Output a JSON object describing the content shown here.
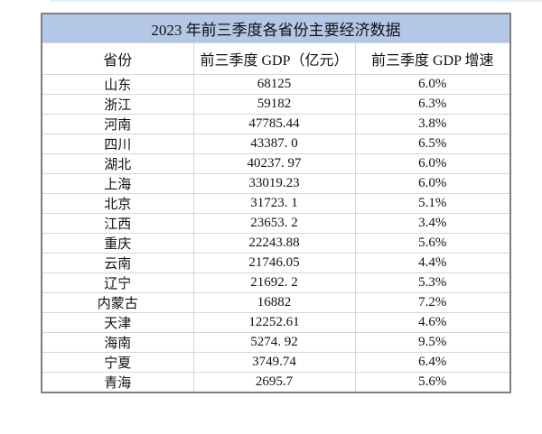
{
  "chart_data": {
    "type": "table",
    "title": "2023 年前三季度各省份主要经济数据",
    "columns": [
      "省份",
      "前三季度 GDP（亿元）",
      "前三季度 GDP 增速"
    ],
    "rows": [
      [
        "山东",
        "68125",
        "6.0%"
      ],
      [
        "浙江",
        "59182",
        "6.3%"
      ],
      [
        "河南",
        "47785.44",
        "3.8%"
      ],
      [
        "四川",
        "43387. 0",
        "6.5%"
      ],
      [
        "湖北",
        "40237. 97",
        "6.0%"
      ],
      [
        "上海",
        "33019.23",
        "6.0%"
      ],
      [
        "北京",
        "31723. 1",
        "5.1%"
      ],
      [
        "江西",
        "23653. 2",
        "3.4%"
      ],
      [
        "重庆",
        "22243.88",
        "5.6%"
      ],
      [
        "云南",
        "21746.05",
        "4.4%"
      ],
      [
        "辽宁",
        "21692. 2",
        "5.3%"
      ],
      [
        "内蒙古",
        "16882",
        "7.2%"
      ],
      [
        "天津",
        "12252.61",
        "4.6%"
      ],
      [
        "海南",
        "5274. 92",
        "9.5%"
      ],
      [
        "宁夏",
        "3749.74",
        "6.4%"
      ],
      [
        "青海",
        "2695.7",
        "5.6%"
      ]
    ],
    "layout": {
      "legend": "none",
      "grid": true,
      "title_row_spans_all_columns": true
    }
  },
  "colors": {
    "title_bg": "#b4c7e7",
    "outer_border": "#7f7f7f",
    "grid_line": "#d6d6d6",
    "text": "#111111"
  }
}
